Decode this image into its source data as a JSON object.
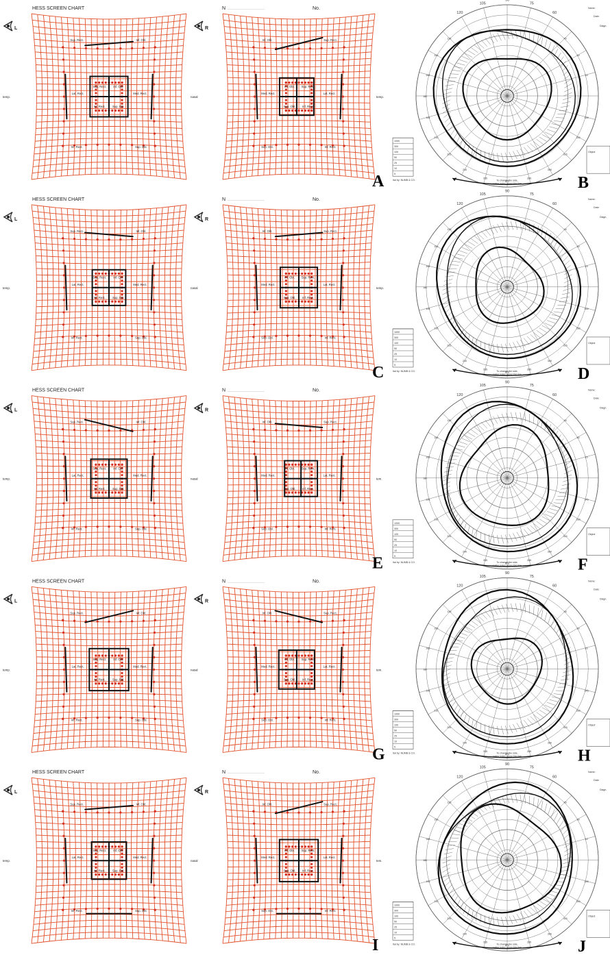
{
  "hess": {
    "chart_title": "HESS SCREEN CHART",
    "eye_left": "L",
    "eye_right": "R",
    "header_n": "N",
    "header_no": "No.",
    "dots": "......................................................",
    "temp": "temp.",
    "nasal": "nasal",
    "tem_alt": "tem.",
    "labels_left": [
      "Sup. Rect.",
      "Inf. Obl.",
      "Lat. Rect.",
      "Med. Rect.",
      "Inf. Rect.",
      "Sup. Obl."
    ],
    "labels_right": [
      "Inf. Obl.",
      "Sup. Rect.",
      "Med. Rect.",
      "Lat. Rect.",
      "Sup. Obl.",
      "Inf. Rect."
    ],
    "colors": {
      "grid": "#e2502a",
      "trace": "#111111",
      "dot": "#d62f1f"
    }
  },
  "perimetry": {
    "side_name": "Name:",
    "side_date": "Date:",
    "side_diag": "Diagn.",
    "footer_note_1": "To change the side,",
    "footer_note_2": "swing index along this line",
    "maker": "Ital by: NUMB & CO.",
    "deg_top": [
      "120",
      "105",
      "90",
      "75",
      "60"
    ],
    "deg_side": [
      "135",
      "150",
      "165",
      "180",
      "195",
      "210",
      "225",
      "240",
      "255",
      "270",
      "285",
      "300",
      "315",
      "330",
      "345",
      "15",
      "30",
      "45"
    ],
    "table_head": "Object",
    "table_values": [
      "1000",
      "300",
      "100",
      "50",
      "25",
      "10",
      "5"
    ]
  },
  "panels": [
    {
      "id": "A",
      "letter": "A",
      "row": 0
    },
    {
      "id": "B",
      "letter": "B",
      "row": 0
    },
    {
      "id": "C",
      "letter": "C",
      "row": 1
    },
    {
      "id": "D",
      "letter": "D",
      "row": 1
    },
    {
      "id": "E",
      "letter": "E",
      "row": 2
    },
    {
      "id": "F",
      "letter": "F",
      "row": 2
    },
    {
      "id": "G",
      "letter": "G",
      "row": 3
    },
    {
      "id": "H",
      "letter": "H",
      "row": 3
    },
    {
      "id": "I",
      "letter": "I",
      "row": 4
    },
    {
      "id": "J",
      "letter": "J",
      "row": 4
    }
  ]
}
